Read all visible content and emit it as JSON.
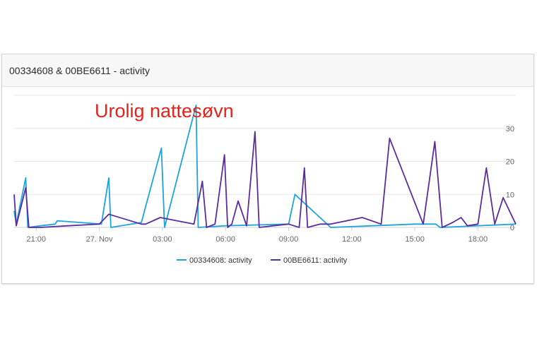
{
  "card": {
    "title": "00334608 & 00BE6611 - activity"
  },
  "annotation": {
    "text": "Urolig nattesøvn",
    "color": "#e2231a"
  },
  "chart_data": {
    "type": "line",
    "title": "00334608 & 00BE6611 - activity",
    "xlabel": "",
    "ylabel": "",
    "x_range_hours": [
      19.95,
      43.8
    ],
    "x_ticks": [
      {
        "label": "21:00",
        "hour": 21
      },
      {
        "label": "27. Nov",
        "hour": 24
      },
      {
        "label": "03:00",
        "hour": 27
      },
      {
        "label": "06:00",
        "hour": 30
      },
      {
        "label": "09:00",
        "hour": 33
      },
      {
        "label": "12:00",
        "hour": 36
      },
      {
        "label": "15:00",
        "hour": 39
      },
      {
        "label": "18:00",
        "hour": 42
      }
    ],
    "ylim": [
      0,
      40
    ],
    "y_ticks": [
      0,
      10,
      20,
      30
    ],
    "y_grid_lines": [
      0,
      10,
      20,
      30,
      40
    ],
    "y_axis_position": "right",
    "grid": true,
    "legend_position": "bottom-center",
    "series": [
      {
        "name": "00334608: activity",
        "color": "#1fa3e0",
        "points": [
          [
            19.95,
            5
          ],
          [
            20.05,
            1
          ],
          [
            20.5,
            15
          ],
          [
            20.6,
            0
          ],
          [
            21.2,
            0.5
          ],
          [
            21.9,
            1
          ],
          [
            22.0,
            2
          ],
          [
            24.1,
            1
          ],
          [
            24.45,
            15
          ],
          [
            24.55,
            0
          ],
          [
            26.0,
            1.5
          ],
          [
            26.95,
            24
          ],
          [
            27.1,
            0
          ],
          [
            28.6,
            37
          ],
          [
            28.7,
            0
          ],
          [
            30.0,
            0.5
          ],
          [
            33.0,
            1
          ],
          [
            33.3,
            10
          ],
          [
            35.0,
            0
          ],
          [
            39.0,
            1
          ],
          [
            40.0,
            1
          ],
          [
            40.2,
            0
          ],
          [
            43.8,
            1
          ]
        ]
      },
      {
        "name": "00BE6611: activity",
        "color": "#5b2ca0",
        "points": [
          [
            19.95,
            10
          ],
          [
            20.05,
            0.5
          ],
          [
            20.5,
            12
          ],
          [
            20.65,
            0
          ],
          [
            21.2,
            0
          ],
          [
            22.5,
            0.5
          ],
          [
            24.0,
            1
          ],
          [
            24.45,
            4
          ],
          [
            26.0,
            1
          ],
          [
            26.2,
            1
          ],
          [
            26.9,
            3
          ],
          [
            28.5,
            1
          ],
          [
            28.9,
            14
          ],
          [
            29.1,
            0
          ],
          [
            29.5,
            1
          ],
          [
            29.95,
            22
          ],
          [
            30.1,
            0
          ],
          [
            30.3,
            1
          ],
          [
            30.6,
            8
          ],
          [
            31.0,
            0.5
          ],
          [
            31.4,
            29
          ],
          [
            31.6,
            0
          ],
          [
            33.0,
            1
          ],
          [
            33.5,
            0
          ],
          [
            33.75,
            18
          ],
          [
            33.9,
            0
          ],
          [
            34.5,
            1
          ],
          [
            35.0,
            1
          ],
          [
            36.5,
            3
          ],
          [
            37.4,
            1
          ],
          [
            37.8,
            27
          ],
          [
            39.4,
            1
          ],
          [
            39.95,
            26
          ],
          [
            40.3,
            0
          ],
          [
            40.8,
            1.5
          ],
          [
            41.2,
            3
          ],
          [
            41.5,
            0.5
          ],
          [
            42.0,
            1
          ],
          [
            42.4,
            18
          ],
          [
            42.8,
            1
          ],
          [
            43.2,
            9
          ],
          [
            43.8,
            1
          ]
        ]
      }
    ]
  }
}
